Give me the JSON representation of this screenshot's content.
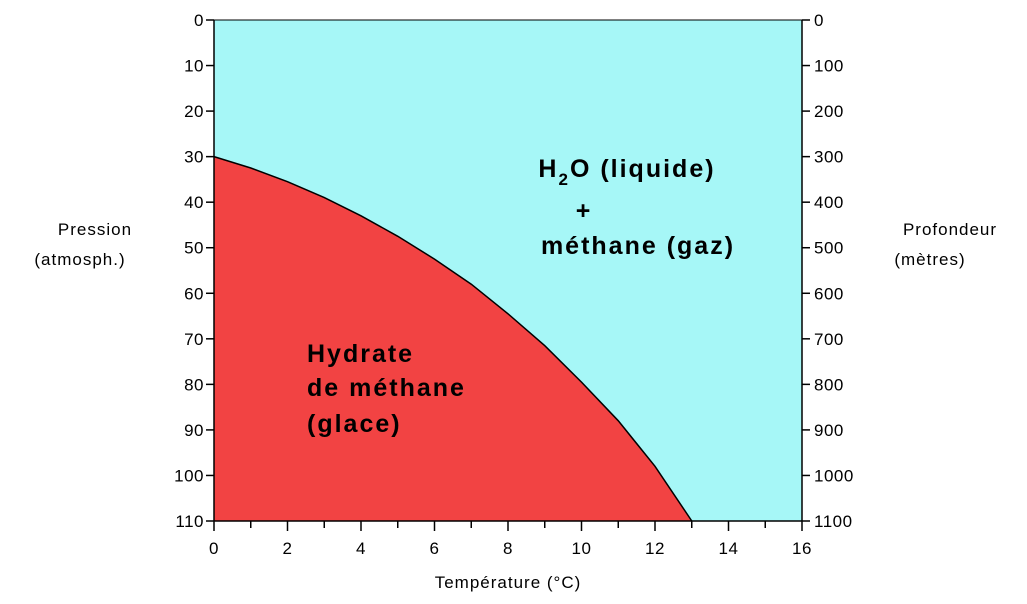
{
  "chart_data": {
    "type": "area",
    "xlabel": "Température (°C)",
    "ylabel_left": [
      "Pression",
      "(atmosph.)"
    ],
    "ylabel_right": [
      "Profondeur",
      "(mètres)"
    ],
    "xlim": [
      0,
      16
    ],
    "ylim": [
      0,
      110
    ],
    "y_inverted": true,
    "x_ticks": [
      0,
      2,
      4,
      6,
      8,
      10,
      12,
      14,
      16
    ],
    "y_ticks_left": [
      0,
      10,
      20,
      30,
      40,
      50,
      60,
      70,
      80,
      90,
      100,
      110
    ],
    "y_ticks_right": [
      0,
      100,
      200,
      300,
      400,
      500,
      600,
      700,
      800,
      900,
      1000,
      1100
    ],
    "boundary_curve": {
      "x": [
        0,
        1,
        2,
        3,
        4,
        5,
        6,
        7,
        8,
        9,
        10,
        11,
        12,
        13
      ],
      "y": [
        30,
        32.5,
        35.5,
        39,
        43,
        47.5,
        52.5,
        58,
        64.5,
        71.5,
        79.5,
        88,
        98,
        110
      ]
    },
    "regions": [
      {
        "lines": [
          "H",
          "2",
          "O (liquide)",
          "+",
          "méthane (gaz)"
        ],
        "color": "#a6f7f7"
      },
      {
        "lines": [
          "Hydrate",
          "de méthane",
          "(glace)"
        ],
        "color": "#f24343"
      }
    ],
    "colors": {
      "liquid_region": "#a6f7f7",
      "hydrate_region": "#f24343",
      "axis": "#000000"
    },
    "grid": false
  }
}
